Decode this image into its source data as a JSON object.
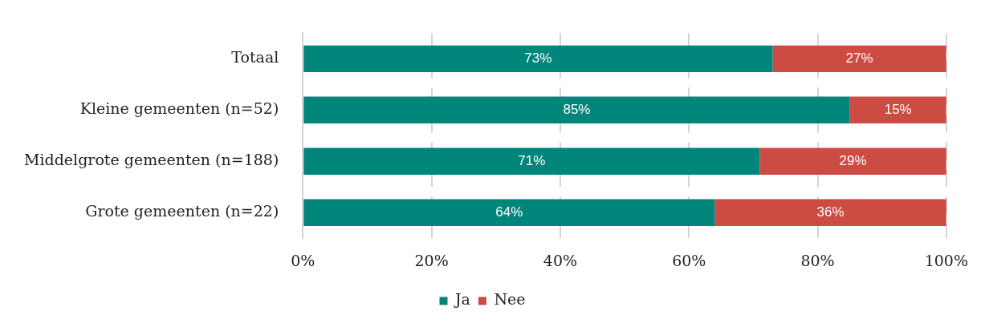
{
  "chart_data": {
    "type": "bar",
    "orientation": "horizontal",
    "stacked": true,
    "categories": [
      "Totaal",
      "Kleine gemeenten (n=52)",
      "Middelgrote gemeenten (n=188)",
      "Grote gemeenten (n=22)"
    ],
    "series": [
      {
        "name": "Ja",
        "color": "#00857a",
        "values": [
          73,
          85,
          71,
          64
        ],
        "value_labels": [
          "73%",
          "85%",
          "71%",
          "64%"
        ]
      },
      {
        "name": "Nee",
        "color": "#cc4b42",
        "values": [
          27,
          15,
          29,
          36
        ],
        "value_labels": [
          "27%",
          "15%",
          "29%",
          "36%"
        ]
      }
    ],
    "xlim": [
      0,
      100
    ],
    "xticks": [
      {
        "value": 0,
        "label": "0%"
      },
      {
        "value": 20,
        "label": "20%"
      },
      {
        "value": 40,
        "label": "40%"
      },
      {
        "value": 60,
        "label": "60%"
      },
      {
        "value": 80,
        "label": "80%"
      },
      {
        "value": 100,
        "label": "100%"
      }
    ],
    "grid": "x",
    "legend": "bottom"
  }
}
